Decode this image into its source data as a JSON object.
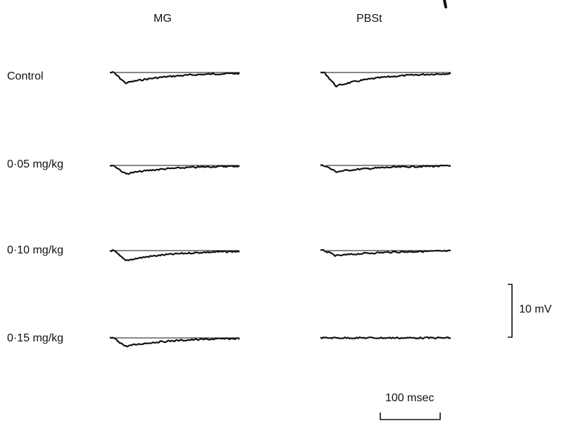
{
  "figure": {
    "columns": [
      {
        "id": "mg",
        "label": "MG"
      },
      {
        "id": "pbst",
        "label": "PBSt"
      }
    ],
    "rows": [
      {
        "label": "Control",
        "traces": {
          "mg": {
            "peak_mV": -2.0
          },
          "pbst": {
            "peak_mV": -2.6
          }
        }
      },
      {
        "label": "0·05 mg/kg",
        "traces": {
          "mg": {
            "peak_mV": -1.6
          },
          "pbst": {
            "peak_mV": -1.2
          }
        }
      },
      {
        "label": "0·10 mg/kg",
        "traces": {
          "mg": {
            "peak_mV": -1.9
          },
          "pbst": {
            "peak_mV": -1.0
          }
        }
      },
      {
        "label": "0·15 mg/kg",
        "traces": {
          "mg": {
            "peak_mV": -1.6
          },
          "pbst": {
            "peak_mV": 0.0
          }
        }
      }
    ],
    "scale_bars": {
      "voltage": {
        "label": "10 mV",
        "value": 10,
        "unit": "mV"
      },
      "time": {
        "label": "100 msec",
        "value": 100,
        "unit": "msec"
      }
    },
    "colors": {
      "ink": "#111111",
      "background": "#ffffff"
    }
  }
}
